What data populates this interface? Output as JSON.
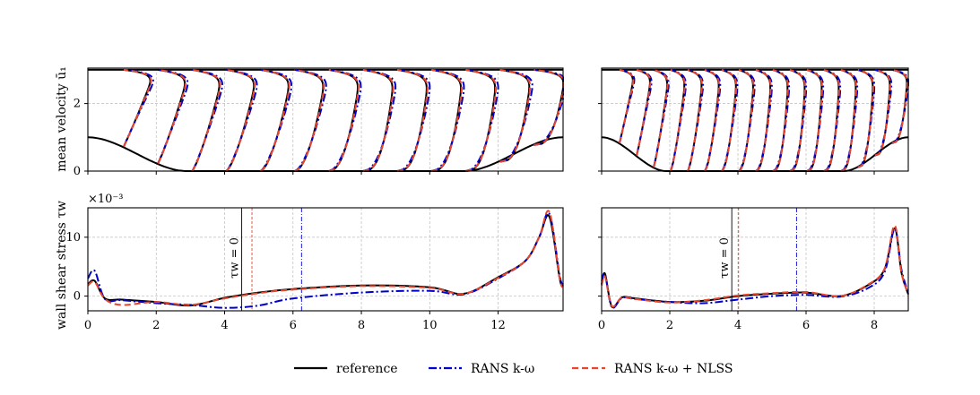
{
  "chart_data": [
    {
      "name": "velocity-left",
      "type": "line",
      "ylabel": "mean velocity ū₁",
      "ylim": [
        0,
        3.05
      ],
      "xlim": [
        0,
        13.9
      ],
      "yticks": [
        "0",
        "2"
      ],
      "ytick_values": [
        0,
        2
      ],
      "xtick_values": [
        0,
        2,
        4,
        6,
        8,
        10,
        12
      ],
      "grid": true,
      "profile_stations": [
        1,
        2,
        3,
        4,
        5,
        6,
        7,
        8,
        9,
        10,
        11,
        12,
        13
      ],
      "series": [
        "reference",
        "RANS k-ω",
        "RANS k-ω + NLSS"
      ]
    },
    {
      "name": "velocity-right",
      "type": "line",
      "ylim": [
        0,
        3.05
      ],
      "xlim": [
        0,
        9.0
      ],
      "ytick_values": [
        0,
        2
      ],
      "xtick_values": [
        0,
        2,
        4,
        6,
        8
      ],
      "grid": true,
      "profile_stations": [
        0.5,
        1.0,
        1.5,
        2.0,
        2.5,
        3.0,
        3.5,
        4.0,
        4.5,
        5.0,
        5.5,
        6.0,
        6.5,
        7.0,
        7.5,
        8.0,
        8.5
      ],
      "series": [
        "reference",
        "RANS k-ω",
        "RANS k-ω + NLSS"
      ]
    },
    {
      "name": "shear-left",
      "type": "line",
      "ylabel": "wall shear stress τw",
      "multiplier": "×10⁻³",
      "ylim": [
        -2.5,
        15
      ],
      "xlim": [
        0,
        13.9
      ],
      "xticks": [
        "0",
        "2",
        "4",
        "6",
        "8",
        "10",
        "12"
      ],
      "xtick_values": [
        0,
        2,
        4,
        6,
        8,
        10,
        12
      ],
      "yticks": [
        "0",
        "10"
      ],
      "ytick_values": [
        0,
        10
      ],
      "annotation": "τw = 0",
      "separation_x": {
        "reference": 4.5,
        "rans": 6.25,
        "nlss": 4.8
      },
      "series": [
        {
          "name": "reference",
          "x": [
            0,
            0.2,
            0.5,
            1,
            2,
            3,
            4,
            5,
            6,
            8,
            10,
            11,
            12,
            12.8,
            13.2,
            13.5,
            13.8,
            13.9
          ],
          "y": [
            2,
            2.6,
            -0.4,
            -0.6,
            -1,
            -1.6,
            -0.3,
            0.6,
            1.2,
            1.8,
            1.5,
            0.4,
            3.2,
            6,
            10,
            13.5,
            3,
            1.8
          ]
        },
        {
          "name": "RANS k-ω",
          "x": [
            0,
            0.2,
            0.5,
            1,
            2,
            3,
            4,
            5,
            6,
            8,
            10,
            11,
            12,
            12.8,
            13.2,
            13.5,
            13.8,
            13.9
          ],
          "y": [
            3,
            4.3,
            -0.5,
            -0.7,
            -1.2,
            -1.5,
            -2,
            -1.6,
            -0.4,
            0.6,
            0.9,
            0.3,
            3,
            6,
            10,
            14,
            3.5,
            2
          ]
        },
        {
          "name": "RANS k-ω + NLSS",
          "x": [
            0,
            0.2,
            0.5,
            1,
            2,
            3,
            4,
            5,
            6,
            8,
            10,
            11,
            12,
            12.8,
            13.2,
            13.5,
            13.8,
            13.9
          ],
          "y": [
            1.8,
            2.4,
            -0.5,
            -1.5,
            -1,
            -1.5,
            -0.4,
            0.5,
            1.1,
            1.7,
            1.4,
            0.4,
            3.1,
            6,
            10,
            14.3,
            3,
            1.6
          ]
        }
      ]
    },
    {
      "name": "shear-right",
      "type": "line",
      "ylim": [
        -2.5,
        15
      ],
      "xlim": [
        0,
        9.0
      ],
      "xticks": [
        "0",
        "2",
        "4",
        "6",
        "8"
      ],
      "xtick_values": [
        0,
        2,
        4,
        6,
        8
      ],
      "ytick_values": [
        0,
        10
      ],
      "annotation": "τw = 0",
      "separation_x": {
        "reference": 3.82,
        "rans": 5.72,
        "nlss": 4.02
      },
      "series": [
        {
          "name": "reference",
          "x": [
            0,
            0.1,
            0.3,
            0.6,
            1,
            2,
            3,
            4,
            5,
            6,
            7,
            7.8,
            8.3,
            8.6,
            8.8,
            9.0
          ],
          "y": [
            2,
            3.8,
            -1.8,
            -0.2,
            -0.4,
            -1,
            -0.8,
            0,
            0.4,
            0.6,
            0,
            1.8,
            4.5,
            11.5,
            4,
            0.3
          ]
        },
        {
          "name": "RANS k-ω",
          "x": [
            0,
            0.1,
            0.3,
            0.6,
            1,
            2,
            3,
            4,
            5,
            6,
            7,
            7.8,
            8.3,
            8.6,
            8.8,
            9.0
          ],
          "y": [
            2.5,
            3.7,
            -1.9,
            -0.3,
            -0.5,
            -1,
            -1.2,
            -0.6,
            0,
            0.2,
            -0.1,
            1.3,
            4,
            11.4,
            4.5,
            0.5
          ]
        },
        {
          "name": "RANS k-ω + NLSS",
          "x": [
            0,
            0.1,
            0.3,
            0.6,
            1,
            2,
            3,
            4,
            5,
            6,
            7,
            7.8,
            8.3,
            8.6,
            8.8,
            9.0
          ],
          "y": [
            1.8,
            3.3,
            -1.7,
            -0.2,
            -0.5,
            -1.1,
            -0.7,
            0.1,
            0.5,
            0.7,
            0,
            1.9,
            4.6,
            12,
            4,
            0.4
          ]
        }
      ]
    }
  ],
  "legend": {
    "placement": "bottom-center",
    "entries": [
      {
        "label": "reference",
        "color": "#000000",
        "style": "solid"
      },
      {
        "label": "RANS k-ω",
        "color": "#0000cc",
        "style": "dash-dot"
      },
      {
        "label": "RANS k-ω + NLSS",
        "color": "#e8452c",
        "style": "dashed"
      }
    ]
  },
  "colors": {
    "reference": "#000000",
    "rans": "#0000cc",
    "nlss": "#e8452c",
    "grid": "#bbbbbb"
  }
}
